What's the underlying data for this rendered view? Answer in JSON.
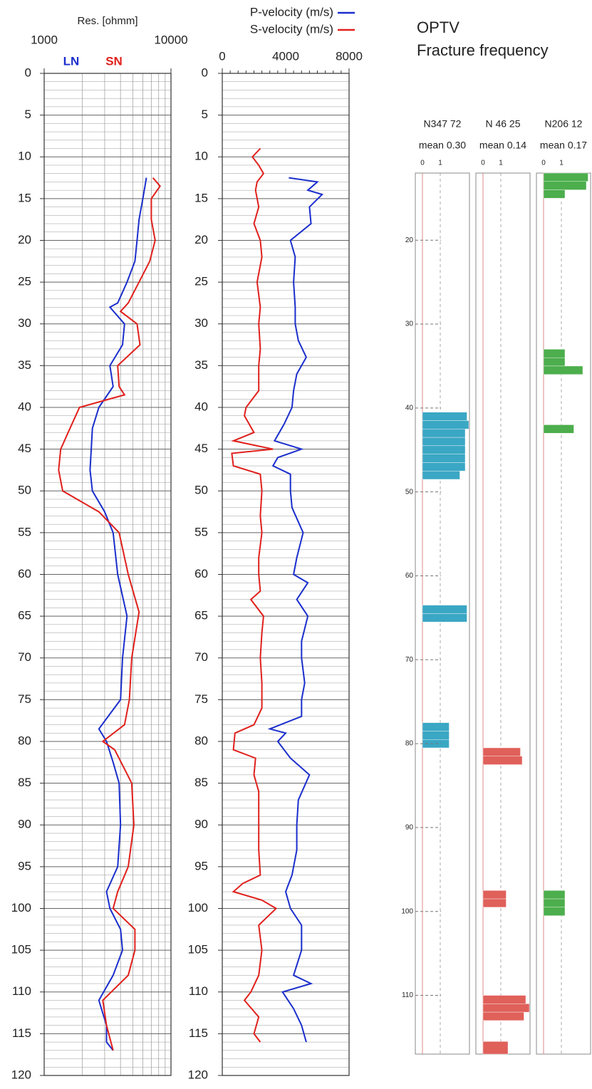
{
  "chart_data": [
    {
      "type": "line",
      "x_label": "Res. [ohmm]",
      "xscale": "log",
      "xlim": [
        1000,
        10000
      ],
      "xticks": [
        1000,
        10000
      ],
      "ylim": [
        0,
        120
      ],
      "yticks": [
        0,
        5,
        10,
        15,
        20,
        25,
        30,
        35,
        40,
        45,
        50,
        55,
        60,
        65,
        70,
        75,
        80,
        85,
        90,
        95,
        100,
        105,
        110,
        115,
        120
      ],
      "grid": true,
      "legend": "top-inside",
      "series": [
        {
          "name": "LN",
          "color": "#1a2ecc",
          "depth": [
            12.5,
            15,
            17.5,
            20,
            22.5,
            25,
            27.5,
            28,
            30,
            32.5,
            35,
            37.5,
            40,
            42.5,
            45,
            47.5,
            50,
            52.5,
            55,
            60,
            65,
            70,
            75,
            78.5,
            80,
            82.5,
            85,
            90,
            95,
            98,
            100,
            102.5,
            105,
            108,
            111,
            114,
            116,
            117
          ],
          "values": [
            6400,
            6000,
            5600,
            5400,
            5200,
            4500,
            3800,
            3300,
            4300,
            4150,
            3300,
            3500,
            2700,
            2400,
            2350,
            2300,
            2400,
            3000,
            3500,
            3800,
            4500,
            4150,
            4000,
            2700,
            3100,
            3500,
            3900,
            4000,
            3800,
            3100,
            3300,
            4000,
            4150,
            3500,
            2700,
            3100,
            3100,
            3500
          ]
        },
        {
          "name": "SN",
          "color": "#e0201c",
          "depth": [
            12.5,
            13.5,
            15,
            17.5,
            20,
            22.5,
            25,
            27.5,
            28.5,
            30,
            32.5,
            35,
            37.5,
            38.5,
            40,
            42.5,
            45,
            47.5,
            50,
            52.5,
            55,
            60,
            64.5,
            70,
            75,
            78,
            80,
            81,
            85,
            90,
            95,
            98,
            100,
            102.5,
            105,
            108,
            111,
            114,
            117
          ],
          "values": [
            7200,
            8200,
            7000,
            7000,
            7500,
            6800,
            5600,
            4600,
            4000,
            5400,
            5700,
            3800,
            3900,
            4300,
            1900,
            1600,
            1350,
            1300,
            1400,
            2700,
            3900,
            4600,
            5600,
            4900,
            4700,
            4300,
            2900,
            3600,
            4900,
            5100,
            4600,
            3800,
            3500,
            5200,
            5200,
            4600,
            2900,
            3100,
            3500
          ]
        }
      ]
    },
    {
      "type": "line",
      "xlim": [
        0,
        8000
      ],
      "xticks": [
        0,
        4000,
        8000
      ],
      "ylim": [
        0,
        120
      ],
      "yticks": [
        0,
        5,
        10,
        15,
        20,
        25,
        30,
        35,
        40,
        45,
        50,
        55,
        60,
        65,
        70,
        75,
        80,
        85,
        90,
        95,
        100,
        105,
        110,
        115,
        120
      ],
      "grid": false,
      "legend": "above",
      "series": [
        {
          "name": "P-velocity (m/s)",
          "color": "#1a2ecc",
          "depth": [
            12.5,
            13,
            14,
            14.5,
            16,
            18,
            20,
            22,
            25,
            28,
            30,
            32,
            34,
            36,
            38,
            40,
            42,
            44,
            45,
            46,
            47,
            48,
            50,
            52,
            55,
            58,
            60,
            61,
            63,
            65,
            68,
            70,
            73,
            75,
            77,
            78.5,
            79,
            80,
            82,
            84,
            87,
            90,
            93,
            96,
            98,
            100,
            102,
            105,
            108,
            109,
            110,
            112,
            114,
            116
          ],
          "values": [
            4200,
            6000,
            5400,
            6300,
            5500,
            5600,
            4300,
            4600,
            4500,
            4600,
            4600,
            4800,
            5300,
            4700,
            4500,
            4400,
            3900,
            3300,
            5000,
            3500,
            3200,
            4300,
            4300,
            4400,
            5100,
            4700,
            4500,
            5400,
            4700,
            5400,
            5000,
            5000,
            5200,
            5000,
            5000,
            3000,
            4000,
            3500,
            4300,
            5500,
            4800,
            4700,
            4700,
            4400,
            4000,
            4300,
            5000,
            5000,
            4500,
            5600,
            3800,
            4500,
            5000,
            5300
          ]
        },
        {
          "name": "S-velocity (m/s)",
          "color": "#e0201c",
          "depth": [
            9,
            10,
            11,
            12,
            13,
            14,
            16,
            18,
            20,
            22,
            25,
            28,
            30,
            33,
            35,
            38,
            40,
            41,
            43,
            44,
            45,
            45.5,
            47,
            48,
            50,
            53,
            55,
            58,
            60,
            62,
            63,
            65,
            67,
            70,
            73,
            76,
            78,
            79,
            81,
            82,
            84,
            86,
            90,
            93,
            96,
            97,
            98,
            99,
            100,
            102,
            105,
            108,
            110,
            111,
            113,
            115,
            116
          ],
          "values": [
            2400,
            1900,
            2300,
            2600,
            2200,
            2100,
            2300,
            2000,
            2400,
            2500,
            2200,
            2400,
            2300,
            2400,
            2300,
            2300,
            1500,
            1400,
            2000,
            700,
            3200,
            600,
            700,
            2400,
            2500,
            2400,
            2500,
            2300,
            2300,
            2400,
            1800,
            2600,
            2500,
            2400,
            2500,
            2500,
            2000,
            800,
            700,
            2100,
            2000,
            2300,
            2300,
            2300,
            2400,
            1300,
            700,
            2500,
            3400,
            2300,
            2500,
            2300,
            1800,
            1400,
            2300,
            2000,
            2400
          ]
        }
      ]
    },
    {
      "type": "barh",
      "title": "OPTV",
      "subtitle": "Fracture frequency",
      "ylim": [
        12,
        117
      ],
      "yticks": [
        20,
        30,
        40,
        50,
        60,
        70,
        80,
        90,
        100,
        110
      ],
      "columns": [
        {
          "name": "N347 72",
          "mean": "mean  0.30",
          "xticks": [
            0,
            1
          ],
          "color": "#3aa7c4",
          "tops": [
            40.5,
            41.5,
            42.5,
            43.5,
            44.5,
            45.5,
            46.5,
            47.5,
            63.5,
            64.5,
            77.5,
            78.5,
            79.5
          ],
          "bottoms": [
            41.5,
            42.5,
            43.5,
            44.5,
            45.5,
            46.5,
            47.5,
            48.5,
            64.5,
            65.5,
            78.5,
            79.5,
            80.5
          ],
          "values": [
            2.5,
            2.6,
            2.4,
            2.4,
            2.4,
            2.4,
            2.4,
            2.1,
            2.5,
            2.5,
            1.5,
            1.5,
            1.5
          ]
        },
        {
          "name": "N 46 25",
          "mean": "mean  0.14",
          "xticks": [
            0,
            1
          ],
          "color": "#e0605a",
          "tops": [
            80.5,
            81.5,
            97.5,
            98.5,
            110,
            111,
            112,
            115.5
          ],
          "bottoms": [
            81.5,
            82.5,
            98.5,
            99.5,
            111,
            112,
            113,
            117
          ],
          "values": [
            2.1,
            2.2,
            1.3,
            1.3,
            2.4,
            2.6,
            2.3,
            1.4
          ]
        },
        {
          "name": "N206 12",
          "mean": "mean  0.17",
          "xticks": [
            0,
            1
          ],
          "color": "#4cae4c",
          "tops": [
            12,
            13,
            14,
            33,
            34,
            35,
            42,
            97.5,
            98.5,
            99.5
          ],
          "bottoms": [
            13,
            14,
            15,
            34,
            35,
            36,
            43,
            98.5,
            99.5,
            100.5
          ],
          "values": [
            2.5,
            2.4,
            1.2,
            1.2,
            1.2,
            2.2,
            1.7,
            1.2,
            1.2,
            1.2
          ]
        }
      ]
    }
  ]
}
